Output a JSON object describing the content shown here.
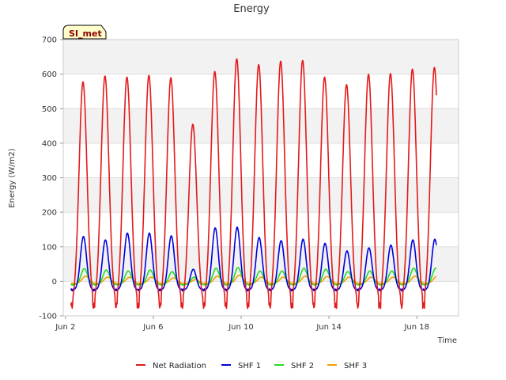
{
  "chart_data": {
    "type": "line",
    "title": "Energy",
    "xlabel": "Time",
    "ylabel": "Energy (W/m2)",
    "badge": "SI_met",
    "xlim": [
      1.9,
      19.9
    ],
    "ylim": [
      -100,
      700
    ],
    "yticks": [
      -100,
      0,
      100,
      200,
      300,
      400,
      500,
      600,
      700
    ],
    "xticks": [
      {
        "value": 2,
        "label": "Jun 2"
      },
      {
        "value": 6,
        "label": "Jun 6"
      },
      {
        "value": 10,
        "label": "Jun 10"
      },
      {
        "value": 14,
        "label": "Jun 14"
      },
      {
        "value": 18,
        "label": "Jun 18"
      }
    ],
    "grid": true,
    "legend_position": "bottom",
    "day_centers": [
      2.8,
      3.8,
      4.8,
      5.8,
      6.8,
      7.8,
      8.8,
      9.8,
      10.8,
      11.8,
      12.8,
      13.8,
      14.8,
      15.8,
      16.8,
      17.8,
      18.8
    ],
    "series": [
      {
        "name": "Net Radiation",
        "color": "#e31a1c",
        "daily_peak": [
          578,
          595,
          592,
          597,
          590,
          455,
          608,
          645,
          628,
          638,
          640,
          592,
          570,
          600,
          602,
          615,
          620
        ],
        "night_value": -70
      },
      {
        "name": "SHF 1",
        "color": "#0000dd",
        "daily_peak": [
          130,
          120,
          140,
          140,
          132,
          35,
          155,
          157,
          127,
          118,
          122,
          110,
          88,
          97,
          105,
          120,
          122
        ],
        "night_value": -25
      },
      {
        "name": "SHF 2",
        "color": "#22dd22",
        "daily_peak": [
          37,
          33,
          30,
          33,
          28,
          12,
          38,
          40,
          30,
          30,
          38,
          35,
          28,
          30,
          30,
          38,
          38
        ],
        "night_value": -10
      },
      {
        "name": "SHF 3",
        "color": "#f5a000",
        "daily_peak": [
          15,
          12,
          12,
          12,
          10,
          5,
          15,
          18,
          12,
          12,
          15,
          14,
          12,
          12,
          12,
          15,
          15
        ],
        "night_value": -6
      }
    ]
  }
}
